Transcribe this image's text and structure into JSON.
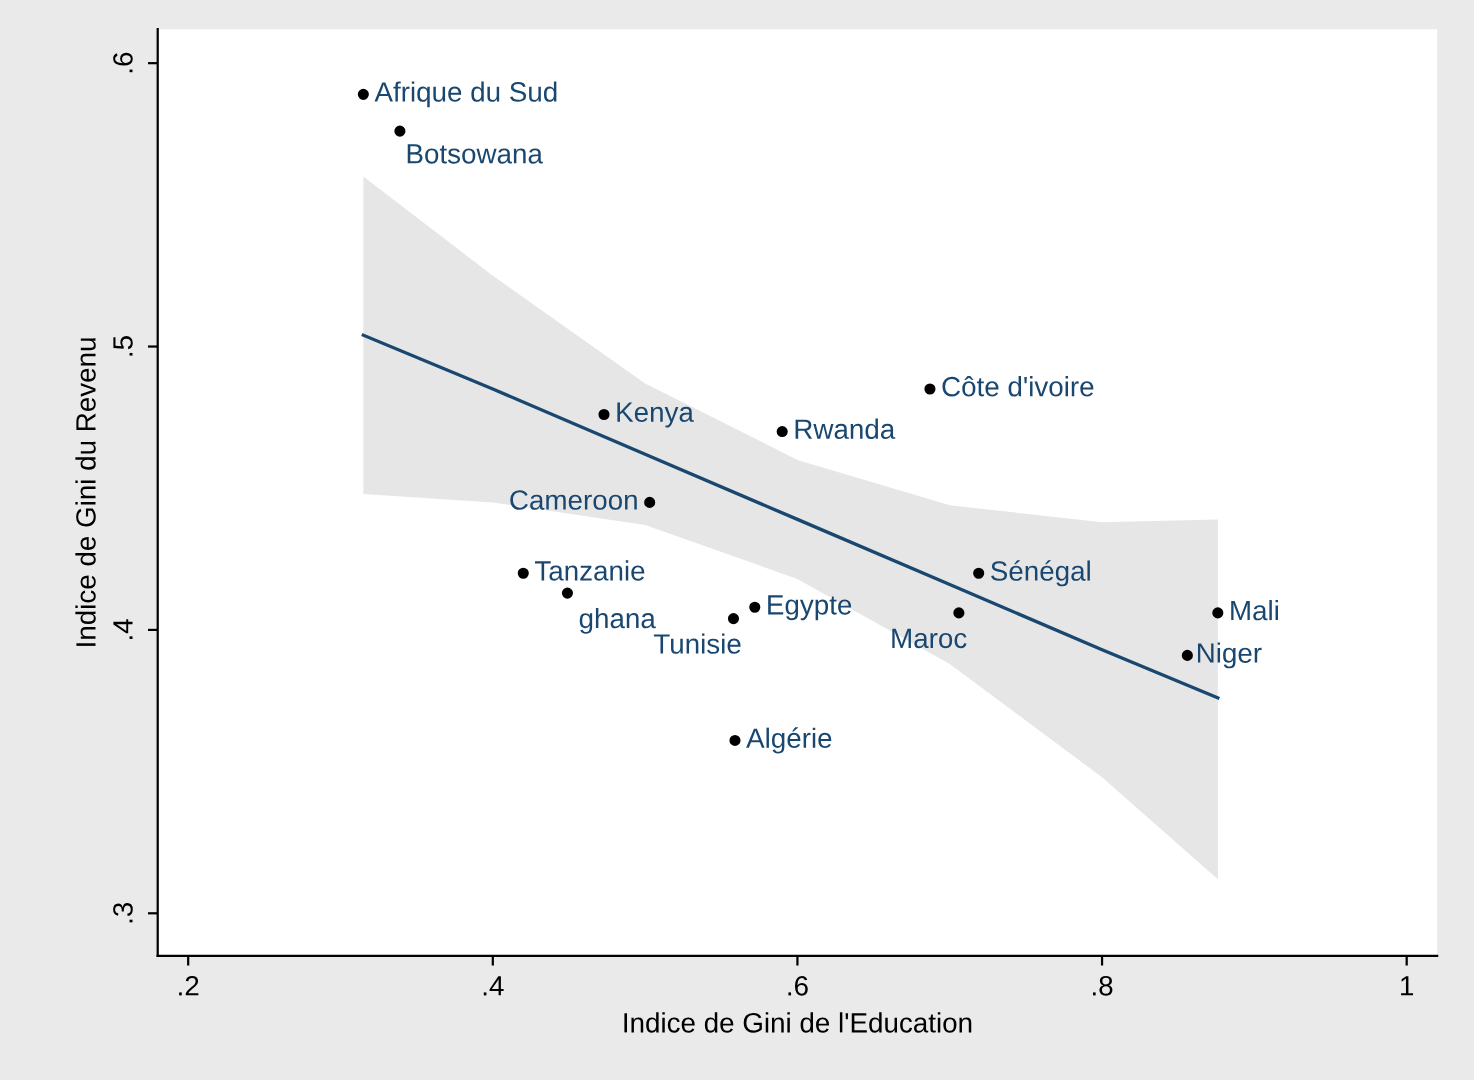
{
  "chart_data": {
    "type": "scatter",
    "xlabel": "Indice de Gini de l'Education",
    "ylabel": "Indice de Gini du Revenu",
    "xlim": [
      0.18,
      1.02
    ],
    "ylim": [
      0.285,
      0.612
    ],
    "xticks": [
      {
        "value": 0.2,
        "label": ".2"
      },
      {
        "value": 0.4,
        "label": ".4"
      },
      {
        "value": 0.6,
        "label": ".6"
      },
      {
        "value": 0.8,
        "label": ".8"
      },
      {
        "value": 1,
        "label": "1"
      }
    ],
    "yticks": [
      {
        "value": 0.3,
        "label": ".3"
      },
      {
        "value": 0.4,
        "label": ".4"
      },
      {
        "value": 0.5,
        "label": ".5"
      },
      {
        "value": 0.6,
        "label": ".6"
      }
    ],
    "grid": false,
    "legend": false,
    "series": [
      {
        "marker": "circle",
        "color": "#000000",
        "x": [
          0.315,
          0.339,
          0.473,
          0.59,
          0.687,
          0.503,
          0.42,
          0.449,
          0.558,
          0.572,
          0.706,
          0.719,
          0.876,
          0.856,
          0.559
        ],
        "values": [
          0.589,
          0.576,
          0.476,
          0.47,
          0.485,
          0.445,
          0.42,
          0.413,
          0.404,
          0.408,
          0.406,
          0.42,
          0.406,
          0.391,
          0.361
        ]
      },
      {
        "type": "line",
        "marker": "none",
        "color": "#1a476f",
        "x": [
          0.315,
          0.4,
          0.5,
          0.6,
          0.7,
          0.8,
          0.876
        ],
        "values": [
          0.504,
          0.485,
          0.462,
          0.439,
          0.416,
          0.393,
          0.376
        ],
        "lower": [
          0.448,
          0.445,
          0.437,
          0.418,
          0.388,
          0.348,
          0.312
        ],
        "upper": [
          0.56,
          0.525,
          0.487,
          0.46,
          0.444,
          0.438,
          0.439
        ]
      }
    ],
    "annotations": [
      {
        "text": "Afrique du Sud",
        "x": 0.315,
        "y": 0.589
      },
      {
        "text": "Botsowana",
        "x": 0.339,
        "y": 0.576
      },
      {
        "text": "Kenya",
        "x": 0.473,
        "y": 0.476
      },
      {
        "text": "Rwanda",
        "x": 0.59,
        "y": 0.47
      },
      {
        "text": "Côte d'ivoire",
        "x": 0.687,
        "y": 0.485
      },
      {
        "text": "Cameroon",
        "x": 0.503,
        "y": 0.445
      },
      {
        "text": "Tanzanie",
        "x": 0.42,
        "y": 0.42
      },
      {
        "text": "ghana",
        "x": 0.449,
        "y": 0.413
      },
      {
        "text": "Tunisie",
        "x": 0.558,
        "y": 0.404
      },
      {
        "text": "Egypte",
        "x": 0.572,
        "y": 0.408
      },
      {
        "text": "Maroc",
        "x": 0.706,
        "y": 0.406
      },
      {
        "text": "Sénégal",
        "x": 0.719,
        "y": 0.42
      },
      {
        "text": "Mali",
        "x": 0.876,
        "y": 0.406
      },
      {
        "text": "Niger",
        "x": 0.856,
        "y": 0.391
      },
      {
        "text": "Algérie",
        "x": 0.559,
        "y": 0.361
      }
    ]
  }
}
